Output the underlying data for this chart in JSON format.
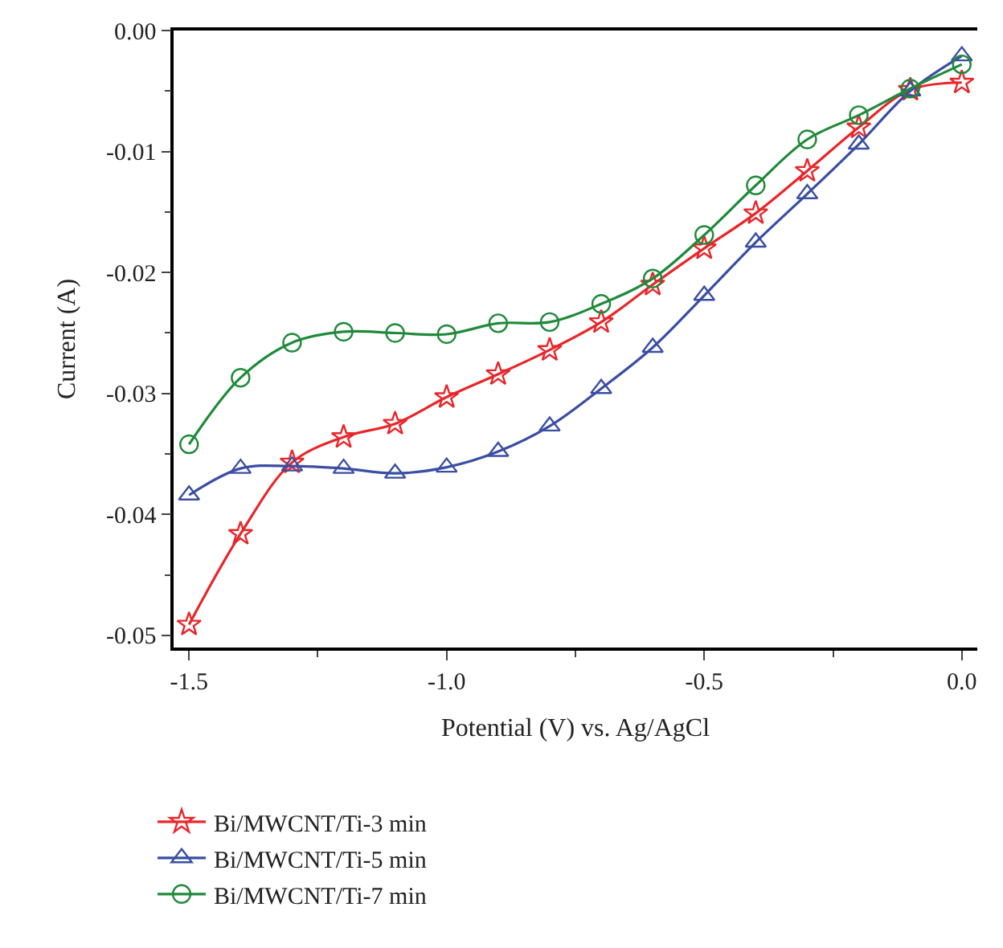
{
  "chart_data": {
    "type": "line",
    "xlabel": "Potential (V) vs. Ag/AgCl",
    "ylabel": "Current (A)",
    "x": [
      -1.5,
      -1.4,
      -1.3,
      -1.2,
      -1.1,
      -1.0,
      -0.9,
      -0.8,
      -0.7,
      -0.6,
      -0.5,
      -0.4,
      -0.3,
      -0.2,
      -0.1,
      0.0
    ],
    "xlim": [
      -1.53,
      0.03
    ],
    "xticks": [
      {
        "value": -1.5,
        "label": "-1.5"
      },
      {
        "value": -1.0,
        "label": "-1.0"
      },
      {
        "value": -0.5,
        "label": "-0.5"
      },
      {
        "value": 0,
        "label": "0.0"
      }
    ],
    "ylim": [
      -0.051,
      0.0
    ],
    "yticks": [
      {
        "value": -0.05,
        "label": "-0.05"
      },
      {
        "value": -0.04,
        "label": "-0.04"
      },
      {
        "value": -0.03,
        "label": "-0.03"
      },
      {
        "value": -0.02,
        "label": "-0.02"
      },
      {
        "value": -0.01,
        "label": "-0.01"
      },
      {
        "value": 0,
        "label": "0.00"
      }
    ],
    "legend": "bottom",
    "line_style": "solid",
    "series": [
      {
        "name": "Bi/MWCNT/Ti-3 min",
        "color": "#e8262a",
        "marker": "star",
        "values": [
          -0.0491,
          -0.0416,
          -0.0357,
          -0.0336,
          -0.0325,
          -0.0303,
          -0.0284,
          -0.0264,
          -0.0241,
          -0.021,
          -0.018,
          -0.0151,
          -0.0116,
          -0.008,
          -0.0049,
          -0.0043
        ]
      },
      {
        "name": "Bi/MWCNT/Ti-5 min",
        "color": "#3a4ea3",
        "marker": "triangle",
        "values": [
          -0.0384,
          -0.0362,
          -0.036,
          -0.0362,
          -0.0366,
          -0.0361,
          -0.0348,
          -0.0327,
          -0.0296,
          -0.0262,
          -0.0219,
          -0.0175,
          -0.0135,
          -0.0094,
          -0.005,
          -0.0021
        ]
      },
      {
        "name": "Bi/MWCNT/Ti-7 min",
        "color": "#1f8a3a",
        "marker": "circle",
        "values": [
          -0.0342,
          -0.0287,
          -0.0258,
          -0.0249,
          -0.025,
          -0.0251,
          -0.0242,
          -0.0241,
          -0.0226,
          -0.0205,
          -0.0169,
          -0.0128,
          -0.009,
          -0.007,
          -0.0048,
          -0.0028
        ]
      }
    ]
  }
}
